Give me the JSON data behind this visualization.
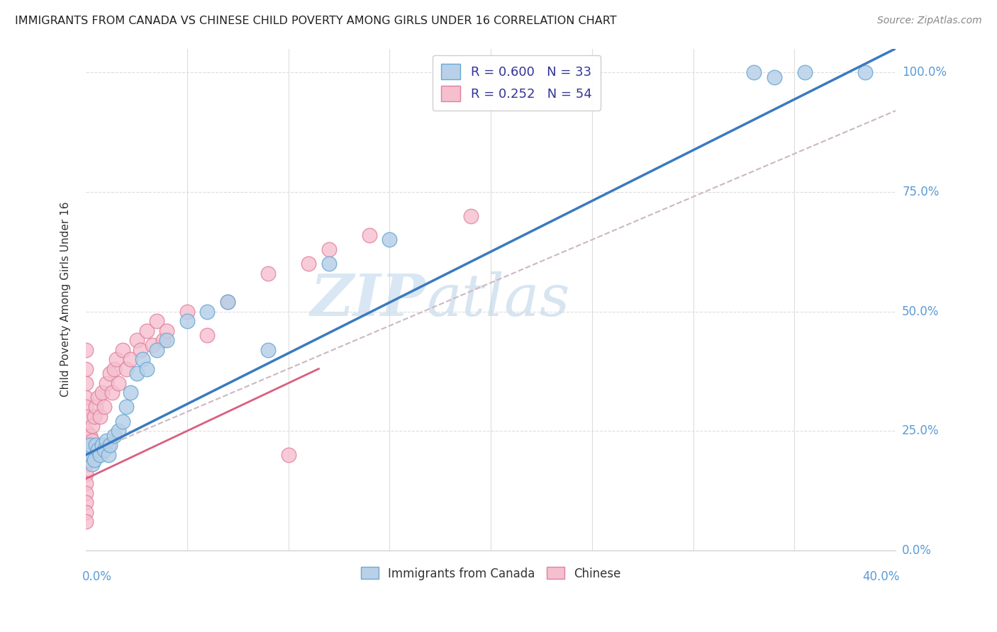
{
  "title": "IMMIGRANTS FROM CANADA VS CHINESE CHILD POVERTY AMONG GIRLS UNDER 16 CORRELATION CHART",
  "source": "Source: ZipAtlas.com",
  "ylabel": "Child Poverty Among Girls Under 16",
  "legend_label1": "Immigrants from Canada",
  "legend_label2": "Chinese",
  "R1": 0.6,
  "N1": 33,
  "R2": 0.252,
  "N2": 54,
  "color_blue": "#b8d0e8",
  "color_blue_line": "#3a7abf",
  "color_blue_edge": "#6aaad4",
  "color_pink": "#f5bfce",
  "color_pink_line": "#d95f7f",
  "color_pink_edge": "#e080a0",
  "color_ref_line": "#ccb8c0",
  "tick_color": "#5b9bd5",
  "blue_scatter_x": [
    0.0,
    0.001,
    0.002,
    0.003,
    0.004,
    0.005,
    0.006,
    0.007,
    0.008,
    0.009,
    0.01,
    0.011,
    0.012,
    0.014,
    0.016,
    0.018,
    0.02,
    0.022,
    0.025,
    0.028,
    0.03,
    0.035,
    0.04,
    0.05,
    0.06,
    0.07,
    0.09,
    0.12,
    0.15,
    0.33,
    0.34,
    0.355,
    0.385
  ],
  "blue_scatter_y": [
    0.21,
    0.2,
    0.22,
    0.18,
    0.19,
    0.22,
    0.21,
    0.2,
    0.22,
    0.21,
    0.23,
    0.2,
    0.22,
    0.24,
    0.25,
    0.27,
    0.3,
    0.33,
    0.37,
    0.4,
    0.38,
    0.42,
    0.44,
    0.48,
    0.5,
    0.52,
    0.42,
    0.6,
    0.65,
    1.0,
    0.99,
    1.0,
    1.0
  ],
  "pink_scatter_x": [
    0.0,
    0.0,
    0.0,
    0.0,
    0.0,
    0.0,
    0.0,
    0.0,
    0.0,
    0.0,
    0.0,
    0.0,
    0.0,
    0.0,
    0.0,
    0.0,
    0.001,
    0.001,
    0.002,
    0.002,
    0.003,
    0.003,
    0.004,
    0.005,
    0.006,
    0.007,
    0.008,
    0.009,
    0.01,
    0.011,
    0.012,
    0.013,
    0.014,
    0.015,
    0.016,
    0.018,
    0.02,
    0.022,
    0.025,
    0.027,
    0.03,
    0.033,
    0.035,
    0.038,
    0.04,
    0.05,
    0.06,
    0.07,
    0.09,
    0.1,
    0.11,
    0.12,
    0.14,
    0.19
  ],
  "pink_scatter_y": [
    0.42,
    0.38,
    0.35,
    0.32,
    0.3,
    0.28,
    0.25,
    0.22,
    0.2,
    0.18,
    0.16,
    0.14,
    0.12,
    0.1,
    0.08,
    0.06,
    0.22,
    0.19,
    0.24,
    0.21,
    0.26,
    0.23,
    0.28,
    0.3,
    0.32,
    0.28,
    0.33,
    0.3,
    0.35,
    0.22,
    0.37,
    0.33,
    0.38,
    0.4,
    0.35,
    0.42,
    0.38,
    0.4,
    0.44,
    0.42,
    0.46,
    0.43,
    0.48,
    0.44,
    0.46,
    0.5,
    0.45,
    0.52,
    0.58,
    0.2,
    0.6,
    0.63,
    0.66,
    0.7
  ],
  "blue_line_x0": 0.0,
  "blue_line_y0": 0.2,
  "blue_line_x1": 0.4,
  "blue_line_y1": 1.05,
  "pink_line_x0": 0.0,
  "pink_line_y0": 0.15,
  "pink_line_x1": 0.115,
  "pink_line_y1": 0.38,
  "ref_line_x0": 0.0,
  "ref_line_y0": 0.2,
  "ref_line_x1": 0.4,
  "ref_line_y1": 0.92,
  "xmin": 0.0,
  "xmax": 0.4,
  "ymin": 0.0,
  "ymax": 1.05,
  "watermark_zip": "ZIP",
  "watermark_atlas": "atlas"
}
